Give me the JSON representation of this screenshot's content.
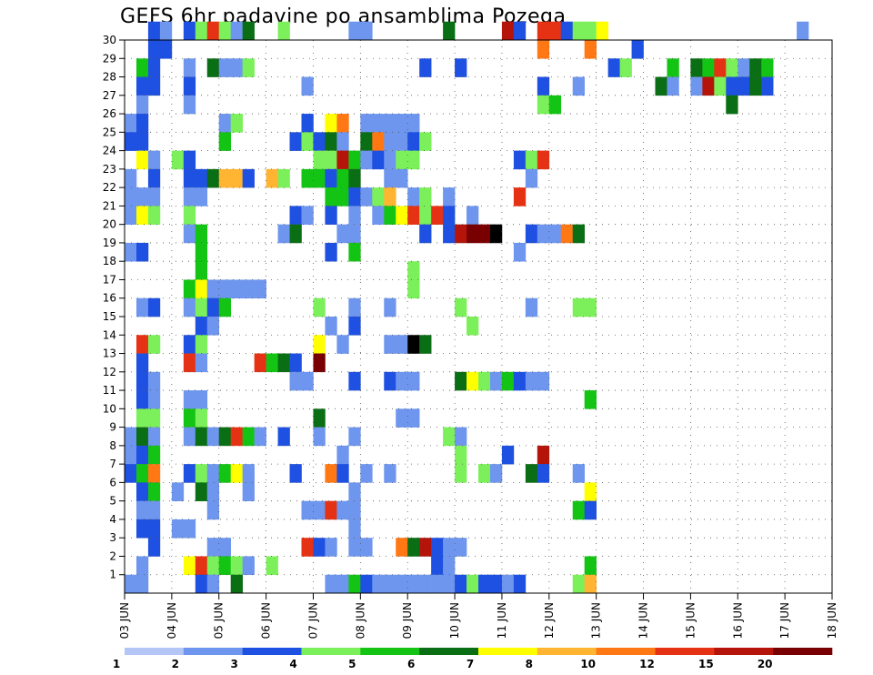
{
  "chart_data": {
    "type": "heatmap",
    "title": "GEFS 6hr padavine po ansamblima Pozega",
    "x_tick_labels": [
      "03 JUN",
      "04 JUN",
      "05 JUN",
      "06 JUN",
      "07 JUN",
      "08 JUN",
      "09 JUN",
      "10 JUN",
      "11 JUN",
      "12 JUN",
      "13 JUN",
      "14 JUN",
      "15 JUN",
      "16 JUN",
      "17 JUN",
      "18 JUN"
    ],
    "y_tick_labels": [
      "1",
      "2",
      "3",
      "4",
      "5",
      "6",
      "7",
      "8",
      "9",
      "10",
      "11",
      "12",
      "13",
      "14",
      "15",
      "16",
      "17",
      "18",
      "19",
      "20",
      "21",
      "22",
      "23",
      "24",
      "25",
      "26",
      "27",
      "28",
      "29",
      "30"
    ],
    "x_range": [
      0,
      60
    ],
    "y_range": [
      0,
      30
    ],
    "grid": true,
    "legend": {
      "placement": "bottom",
      "thresholds": [
        "1",
        "2",
        "3",
        "4",
        "5",
        "6",
        "7",
        "8",
        "10",
        "12",
        "15",
        "20"
      ],
      "colors": [
        "#b4c6f5",
        "#6e96ee",
        "#1e50e2",
        "#7cf05a",
        "#14c414",
        "#0a6e14",
        "#ffff00",
        "#ffb432",
        "#ff7814",
        "#e63214",
        "#b4140a",
        "#780000"
      ]
    },
    "cells": [
      [
        30,
        2,
        2
      ],
      [
        30,
        3,
        1
      ],
      [
        30,
        5,
        2
      ],
      [
        30,
        6,
        3
      ],
      [
        30,
        7,
        9
      ],
      [
        30,
        8,
        3
      ],
      [
        30,
        9,
        1
      ],
      [
        30,
        10,
        5
      ],
      [
        30,
        13,
        3
      ],
      [
        30,
        19,
        1
      ],
      [
        30,
        20,
        1
      ],
      [
        30,
        27,
        5
      ],
      [
        30,
        32,
        10
      ],
      [
        30,
        33,
        2
      ],
      [
        30,
        35,
        9
      ],
      [
        30,
        36,
        9
      ],
      [
        30,
        37,
        2
      ],
      [
        30,
        38,
        3
      ],
      [
        30,
        39,
        3
      ],
      [
        30,
        40,
        6
      ],
      [
        30,
        57,
        1
      ],
      [
        29,
        2,
        2
      ],
      [
        29,
        3,
        2
      ],
      [
        29,
        35,
        8
      ],
      [
        29,
        39,
        8
      ],
      [
        29,
        43,
        2
      ],
      [
        28,
        1,
        4
      ],
      [
        28,
        2,
        2
      ],
      [
        28,
        5,
        1
      ],
      [
        28,
        7,
        5
      ],
      [
        28,
        8,
        1
      ],
      [
        28,
        9,
        1
      ],
      [
        28,
        10,
        3
      ],
      [
        28,
        25,
        2
      ],
      [
        28,
        28,
        2
      ],
      [
        28,
        41,
        2
      ],
      [
        28,
        42,
        3
      ],
      [
        28,
        46,
        4
      ],
      [
        28,
        48,
        5
      ],
      [
        28,
        49,
        4
      ],
      [
        28,
        50,
        9
      ],
      [
        28,
        51,
        3
      ],
      [
        28,
        52,
        1
      ],
      [
        28,
        53,
        5
      ],
      [
        28,
        54,
        4
      ],
      [
        27,
        1,
        2
      ],
      [
        27,
        2,
        2
      ],
      [
        27,
        5,
        2
      ],
      [
        27,
        15,
        1
      ],
      [
        27,
        35,
        2
      ],
      [
        27,
        38,
        1
      ],
      [
        27,
        45,
        5
      ],
      [
        27,
        46,
        1
      ],
      [
        27,
        48,
        1
      ],
      [
        27,
        49,
        10
      ],
      [
        27,
        50,
        3
      ],
      [
        27,
        51,
        2
      ],
      [
        27,
        52,
        2
      ],
      [
        27,
        53,
        5
      ],
      [
        27,
        54,
        2
      ],
      [
        26,
        1,
        1
      ],
      [
        26,
        5,
        1
      ],
      [
        26,
        35,
        3
      ],
      [
        26,
        36,
        4
      ],
      [
        26,
        51,
        5
      ],
      [
        25,
        0,
        1
      ],
      [
        25,
        1,
        2
      ],
      [
        25,
        8,
        1
      ],
      [
        25,
        9,
        3
      ],
      [
        25,
        15,
        2
      ],
      [
        25,
        17,
        6
      ],
      [
        25,
        18,
        8
      ],
      [
        25,
        20,
        1
      ],
      [
        25,
        21,
        1
      ],
      [
        25,
        22,
        1
      ],
      [
        25,
        23,
        1
      ],
      [
        25,
        24,
        1
      ],
      [
        24,
        0,
        2
      ],
      [
        24,
        1,
        2
      ],
      [
        24,
        8,
        4
      ],
      [
        24,
        14,
        2
      ],
      [
        24,
        15,
        3
      ],
      [
        24,
        16,
        2
      ],
      [
        24,
        17,
        5
      ],
      [
        24,
        18,
        1
      ],
      [
        24,
        20,
        5
      ],
      [
        24,
        21,
        8
      ],
      [
        24,
        22,
        1
      ],
      [
        24,
        23,
        1
      ],
      [
        24,
        24,
        2
      ],
      [
        24,
        25,
        3
      ],
      [
        23,
        1,
        6
      ],
      [
        23,
        2,
        1
      ],
      [
        23,
        4,
        3
      ],
      [
        23,
        5,
        2
      ],
      [
        23,
        16,
        3
      ],
      [
        23,
        17,
        3
      ],
      [
        23,
        18,
        10
      ],
      [
        23,
        19,
        4
      ],
      [
        23,
        20,
        1
      ],
      [
        23,
        21,
        2
      ],
      [
        23,
        22,
        1
      ],
      [
        23,
        23,
        3
      ],
      [
        23,
        24,
        3
      ],
      [
        23,
        33,
        2
      ],
      [
        23,
        34,
        3
      ],
      [
        23,
        35,
        9
      ],
      [
        22,
        0,
        1
      ],
      [
        22,
        2,
        2
      ],
      [
        22,
        5,
        2
      ],
      [
        22,
        6,
        2
      ],
      [
        22,
        7,
        5
      ],
      [
        22,
        8,
        7
      ],
      [
        22,
        9,
        7
      ],
      [
        22,
        10,
        2
      ],
      [
        22,
        12,
        7
      ],
      [
        22,
        13,
        3
      ],
      [
        22,
        15,
        4
      ],
      [
        22,
        16,
        4
      ],
      [
        22,
        17,
        2
      ],
      [
        22,
        18,
        4
      ],
      [
        22,
        19,
        5
      ],
      [
        22,
        22,
        1
      ],
      [
        22,
        23,
        1
      ],
      [
        22,
        34,
        1
      ],
      [
        21,
        0,
        1
      ],
      [
        21,
        1,
        1
      ],
      [
        21,
        2,
        1
      ],
      [
        21,
        5,
        1
      ],
      [
        21,
        6,
        1
      ],
      [
        21,
        17,
        4
      ],
      [
        21,
        18,
        4
      ],
      [
        21,
        19,
        2
      ],
      [
        21,
        20,
        1
      ],
      [
        21,
        21,
        3
      ],
      [
        21,
        22,
        7
      ],
      [
        21,
        24,
        1
      ],
      [
        21,
        25,
        3
      ],
      [
        21,
        27,
        1
      ],
      [
        21,
        33,
        9
      ],
      [
        20,
        0,
        1
      ],
      [
        20,
        1,
        6
      ],
      [
        20,
        2,
        3
      ],
      [
        20,
        5,
        3
      ],
      [
        20,
        14,
        2
      ],
      [
        20,
        15,
        1
      ],
      [
        20,
        17,
        2
      ],
      [
        20,
        19,
        1
      ],
      [
        20,
        21,
        1
      ],
      [
        20,
        22,
        4
      ],
      [
        20,
        23,
        6
      ],
      [
        20,
        24,
        9
      ],
      [
        20,
        25,
        3
      ],
      [
        20,
        26,
        9
      ],
      [
        20,
        27,
        2
      ],
      [
        20,
        29,
        1
      ],
      [
        19,
        5,
        1
      ],
      [
        19,
        6,
        4
      ],
      [
        19,
        13,
        1
      ],
      [
        19,
        14,
        5
      ],
      [
        19,
        18,
        1
      ],
      [
        19,
        19,
        1
      ],
      [
        19,
        25,
        2
      ],
      [
        19,
        27,
        2
      ],
      [
        19,
        28,
        10
      ],
      [
        19,
        29,
        11
      ],
      [
        19,
        30,
        11
      ],
      [
        19,
        31,
        12
      ],
      [
        19,
        34,
        2
      ],
      [
        19,
        35,
        1
      ],
      [
        19,
        36,
        1
      ],
      [
        19,
        37,
        8
      ],
      [
        19,
        38,
        5
      ],
      [
        18,
        0,
        1
      ],
      [
        18,
        1,
        2
      ],
      [
        18,
        6,
        4
      ],
      [
        18,
        17,
        2
      ],
      [
        18,
        19,
        4
      ],
      [
        18,
        33,
        1
      ],
      [
        17,
        6,
        4
      ],
      [
        17,
        24,
        3
      ],
      [
        16,
        5,
        4
      ],
      [
        16,
        6,
        6
      ],
      [
        16,
        7,
        1
      ],
      [
        16,
        8,
        1
      ],
      [
        16,
        9,
        1
      ],
      [
        16,
        10,
        1
      ],
      [
        16,
        11,
        1
      ],
      [
        16,
        24,
        3
      ],
      [
        15,
        1,
        1
      ],
      [
        15,
        2,
        2
      ],
      [
        15,
        5,
        1
      ],
      [
        15,
        6,
        3
      ],
      [
        15,
        7,
        2
      ],
      [
        15,
        8,
        4
      ],
      [
        15,
        16,
        3
      ],
      [
        15,
        19,
        1
      ],
      [
        15,
        22,
        1
      ],
      [
        15,
        28,
        3
      ],
      [
        15,
        34,
        1
      ],
      [
        15,
        38,
        3
      ],
      [
        15,
        39,
        3
      ],
      [
        14,
        6,
        2
      ],
      [
        14,
        7,
        1
      ],
      [
        14,
        17,
        1
      ],
      [
        14,
        19,
        2
      ],
      [
        14,
        29,
        3
      ],
      [
        13,
        1,
        9
      ],
      [
        13,
        2,
        3
      ],
      [
        13,
        5,
        2
      ],
      [
        13,
        6,
        3
      ],
      [
        13,
        16,
        6
      ],
      [
        13,
        18,
        1
      ],
      [
        13,
        22,
        1
      ],
      [
        13,
        23,
        1
      ],
      [
        13,
        24,
        12
      ],
      [
        13,
        25,
        5
      ],
      [
        12,
        1,
        2
      ],
      [
        12,
        5,
        9
      ],
      [
        12,
        6,
        1
      ],
      [
        12,
        11,
        9
      ],
      [
        12,
        12,
        4
      ],
      [
        12,
        13,
        5
      ],
      [
        12,
        14,
        2
      ],
      [
        12,
        16,
        11
      ],
      [
        11,
        1,
        2
      ],
      [
        11,
        2,
        1
      ],
      [
        11,
        14,
        1
      ],
      [
        11,
        15,
        1
      ],
      [
        11,
        19,
        2
      ],
      [
        11,
        22,
        2
      ],
      [
        11,
        23,
        1
      ],
      [
        11,
        24,
        1
      ],
      [
        11,
        28,
        5
      ],
      [
        11,
        29,
        6
      ],
      [
        11,
        30,
        3
      ],
      [
        11,
        31,
        1
      ],
      [
        11,
        32,
        4
      ],
      [
        11,
        33,
        2
      ],
      [
        11,
        34,
        1
      ],
      [
        11,
        35,
        1
      ],
      [
        10,
        1,
        2
      ],
      [
        10,
        2,
        1
      ],
      [
        10,
        5,
        1
      ],
      [
        10,
        6,
        1
      ],
      [
        10,
        39,
        4
      ],
      [
        9,
        1,
        3
      ],
      [
        9,
        2,
        3
      ],
      [
        9,
        5,
        4
      ],
      [
        9,
        6,
        3
      ],
      [
        9,
        16,
        5
      ],
      [
        9,
        23,
        1
      ],
      [
        9,
        24,
        1
      ],
      [
        8,
        0,
        1
      ],
      [
        8,
        1,
        5
      ],
      [
        8,
        2,
        1
      ],
      [
        8,
        5,
        1
      ],
      [
        8,
        6,
        5
      ],
      [
        8,
        7,
        1
      ],
      [
        8,
        8,
        5
      ],
      [
        8,
        9,
        9
      ],
      [
        8,
        10,
        4
      ],
      [
        8,
        11,
        1
      ],
      [
        8,
        13,
        2
      ],
      [
        8,
        16,
        1
      ],
      [
        8,
        19,
        1
      ],
      [
        8,
        27,
        3
      ],
      [
        8,
        28,
        1
      ],
      [
        7,
        0,
        1
      ],
      [
        7,
        1,
        2
      ],
      [
        7,
        2,
        4
      ],
      [
        7,
        18,
        1
      ],
      [
        7,
        28,
        3
      ],
      [
        7,
        32,
        2
      ],
      [
        7,
        35,
        10
      ],
      [
        6,
        0,
        2
      ],
      [
        6,
        1,
        4
      ],
      [
        6,
        2,
        8
      ],
      [
        6,
        5,
        2
      ],
      [
        6,
        6,
        3
      ],
      [
        6,
        7,
        1
      ],
      [
        6,
        8,
        4
      ],
      [
        6,
        9,
        6
      ],
      [
        6,
        10,
        1
      ],
      [
        6,
        14,
        2
      ],
      [
        6,
        17,
        8
      ],
      [
        6,
        18,
        2
      ],
      [
        6,
        20,
        1
      ],
      [
        6,
        22,
        1
      ],
      [
        6,
        28,
        3
      ],
      [
        6,
        30,
        3
      ],
      [
        6,
        31,
        1
      ],
      [
        6,
        34,
        5
      ],
      [
        6,
        35,
        2
      ],
      [
        6,
        38,
        1
      ],
      [
        5,
        1,
        2
      ],
      [
        5,
        2,
        4
      ],
      [
        5,
        4,
        1
      ],
      [
        5,
        6,
        5
      ],
      [
        5,
        7,
        1
      ],
      [
        5,
        10,
        1
      ],
      [
        5,
        19,
        1
      ],
      [
        5,
        39,
        6
      ],
      [
        4,
        1,
        1
      ],
      [
        4,
        2,
        1
      ],
      [
        4,
        7,
        1
      ],
      [
        4,
        15,
        1
      ],
      [
        4,
        16,
        1
      ],
      [
        4,
        17,
        9
      ],
      [
        4,
        18,
        1
      ],
      [
        4,
        19,
        1
      ],
      [
        4,
        38,
        4
      ],
      [
        4,
        39,
        2
      ],
      [
        3,
        1,
        2
      ],
      [
        3,
        2,
        2
      ],
      [
        3,
        4,
        1
      ],
      [
        3,
        5,
        1
      ],
      [
        3,
        19,
        1
      ],
      [
        2,
        2,
        2
      ],
      [
        2,
        7,
        1
      ],
      [
        2,
        8,
        1
      ],
      [
        2,
        15,
        9
      ],
      [
        2,
        16,
        2
      ],
      [
        2,
        17,
        1
      ],
      [
        2,
        19,
        1
      ],
      [
        2,
        20,
        1
      ],
      [
        2,
        23,
        8
      ],
      [
        2,
        24,
        5
      ],
      [
        2,
        25,
        10
      ],
      [
        2,
        26,
        2
      ],
      [
        2,
        27,
        1
      ],
      [
        2,
        28,
        1
      ],
      [
        1,
        1,
        1
      ],
      [
        1,
        5,
        6
      ],
      [
        1,
        6,
        9
      ],
      [
        1,
        7,
        3
      ],
      [
        1,
        8,
        4
      ],
      [
        1,
        9,
        3
      ],
      [
        1,
        10,
        1
      ],
      [
        1,
        12,
        3
      ],
      [
        1,
        26,
        2
      ],
      [
        1,
        27,
        1
      ],
      [
        1,
        39,
        4
      ],
      [
        0,
        0,
        1
      ],
      [
        0,
        1,
        1
      ],
      [
        0,
        6,
        2
      ],
      [
        0,
        7,
        1
      ],
      [
        0,
        9,
        5
      ],
      [
        0,
        17,
        1
      ],
      [
        0,
        18,
        1
      ],
      [
        0,
        19,
        4
      ],
      [
        0,
        20,
        2
      ],
      [
        0,
        21,
        1
      ],
      [
        0,
        22,
        1
      ],
      [
        0,
        23,
        1
      ],
      [
        0,
        24,
        1
      ],
      [
        0,
        25,
        1
      ],
      [
        0,
        26,
        1
      ],
      [
        0,
        27,
        1
      ],
      [
        0,
        28,
        2
      ],
      [
        0,
        29,
        3
      ],
      [
        0,
        30,
        2
      ],
      [
        0,
        31,
        2
      ],
      [
        0,
        32,
        1
      ],
      [
        0,
        33,
        2
      ],
      [
        0,
        38,
        3
      ],
      [
        0,
        39,
        7
      ]
    ]
  }
}
